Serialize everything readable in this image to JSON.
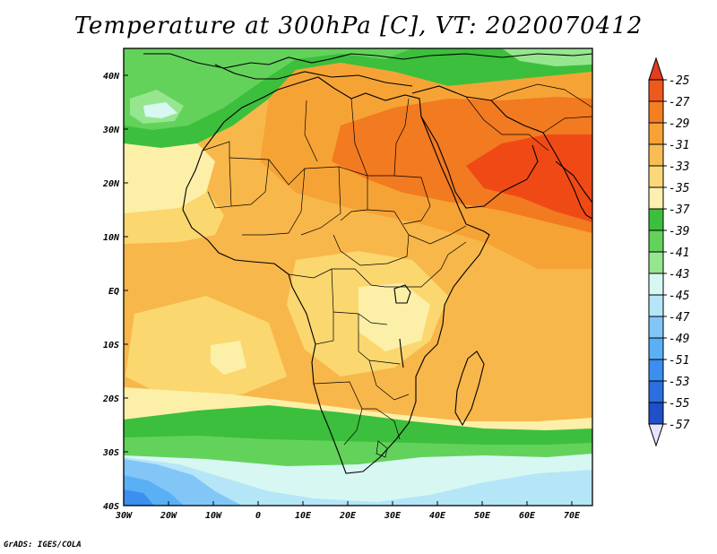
{
  "title": "Temperature at 300hPa [C], VT: 2020070412",
  "credit": "GrADS: IGES/COLA",
  "map": {
    "lon_ticks": [
      "30W",
      "20W",
      "10W",
      "0",
      "10E",
      "20E",
      "30E",
      "40E",
      "50E",
      "60E",
      "70E"
    ],
    "lat_ticks": [
      "40N",
      "30N",
      "20N",
      "10N",
      "EQ",
      "10S",
      "20S",
      "30S",
      "40S"
    ]
  },
  "colorbar": {
    "labels": [
      "-25",
      "-27",
      "-29",
      "-31",
      "-33",
      "-35",
      "-37",
      "-39",
      "-41",
      "-43",
      "-45",
      "-47",
      "-49",
      "-51",
      "-53",
      "-55",
      "-57"
    ],
    "colors": [
      "#ffffff",
      "#ffffff",
      "#f2501c",
      "#f58a1e",
      "#f7a640",
      "#f6bf53",
      "#f9dc7c",
      "#fbf5b4",
      "#3cbf3c",
      "#64d25a",
      "#8ee680",
      "#b4f2a8",
      "#e1fffa",
      "#b4f0fa",
      "#96d2fa",
      "#78b9fa",
      "#50a5f5",
      "#3c96f5",
      "#2882f0",
      "#1464d2",
      "#0a32a0"
    ],
    "top_color": "#e23d1d",
    "bottom_color": "#e8e4ff"
  },
  "field_colors": {
    "t25": "#ef4a16",
    "t27": "#f27a20",
    "t29": "#f6a336",
    "t31": "#f8b74a",
    "t33": "#fbd770",
    "t35": "#fcefa8",
    "t37": "#3cbf3c",
    "t39": "#63d25b",
    "t41": "#96e690",
    "t43": "#d7f7f2",
    "t45": "#b4e6f8",
    "t47": "#82c6f8",
    "t49": "#5ab0f5",
    "t51": "#3c8ef0"
  }
}
